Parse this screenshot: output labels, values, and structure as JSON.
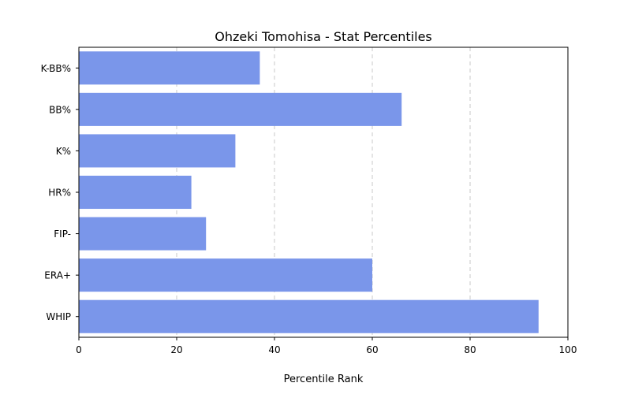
{
  "chart_data": {
    "type": "bar",
    "orientation": "horizontal",
    "title": "Ohzeki Tomohisa - Stat Percentiles",
    "xlabel": "Percentile Rank",
    "ylabel": "",
    "categories": [
      "K-BB%",
      "BB%",
      "K%",
      "HR%",
      "FIP-",
      "ERA+",
      "WHIP"
    ],
    "values": [
      37,
      66,
      32,
      23,
      26,
      60,
      94
    ],
    "xlim": [
      0,
      100
    ],
    "xticks": [
      0,
      20,
      40,
      60,
      80,
      100
    ],
    "grid": "x-dashed",
    "bar_color": "#7a96ea"
  }
}
